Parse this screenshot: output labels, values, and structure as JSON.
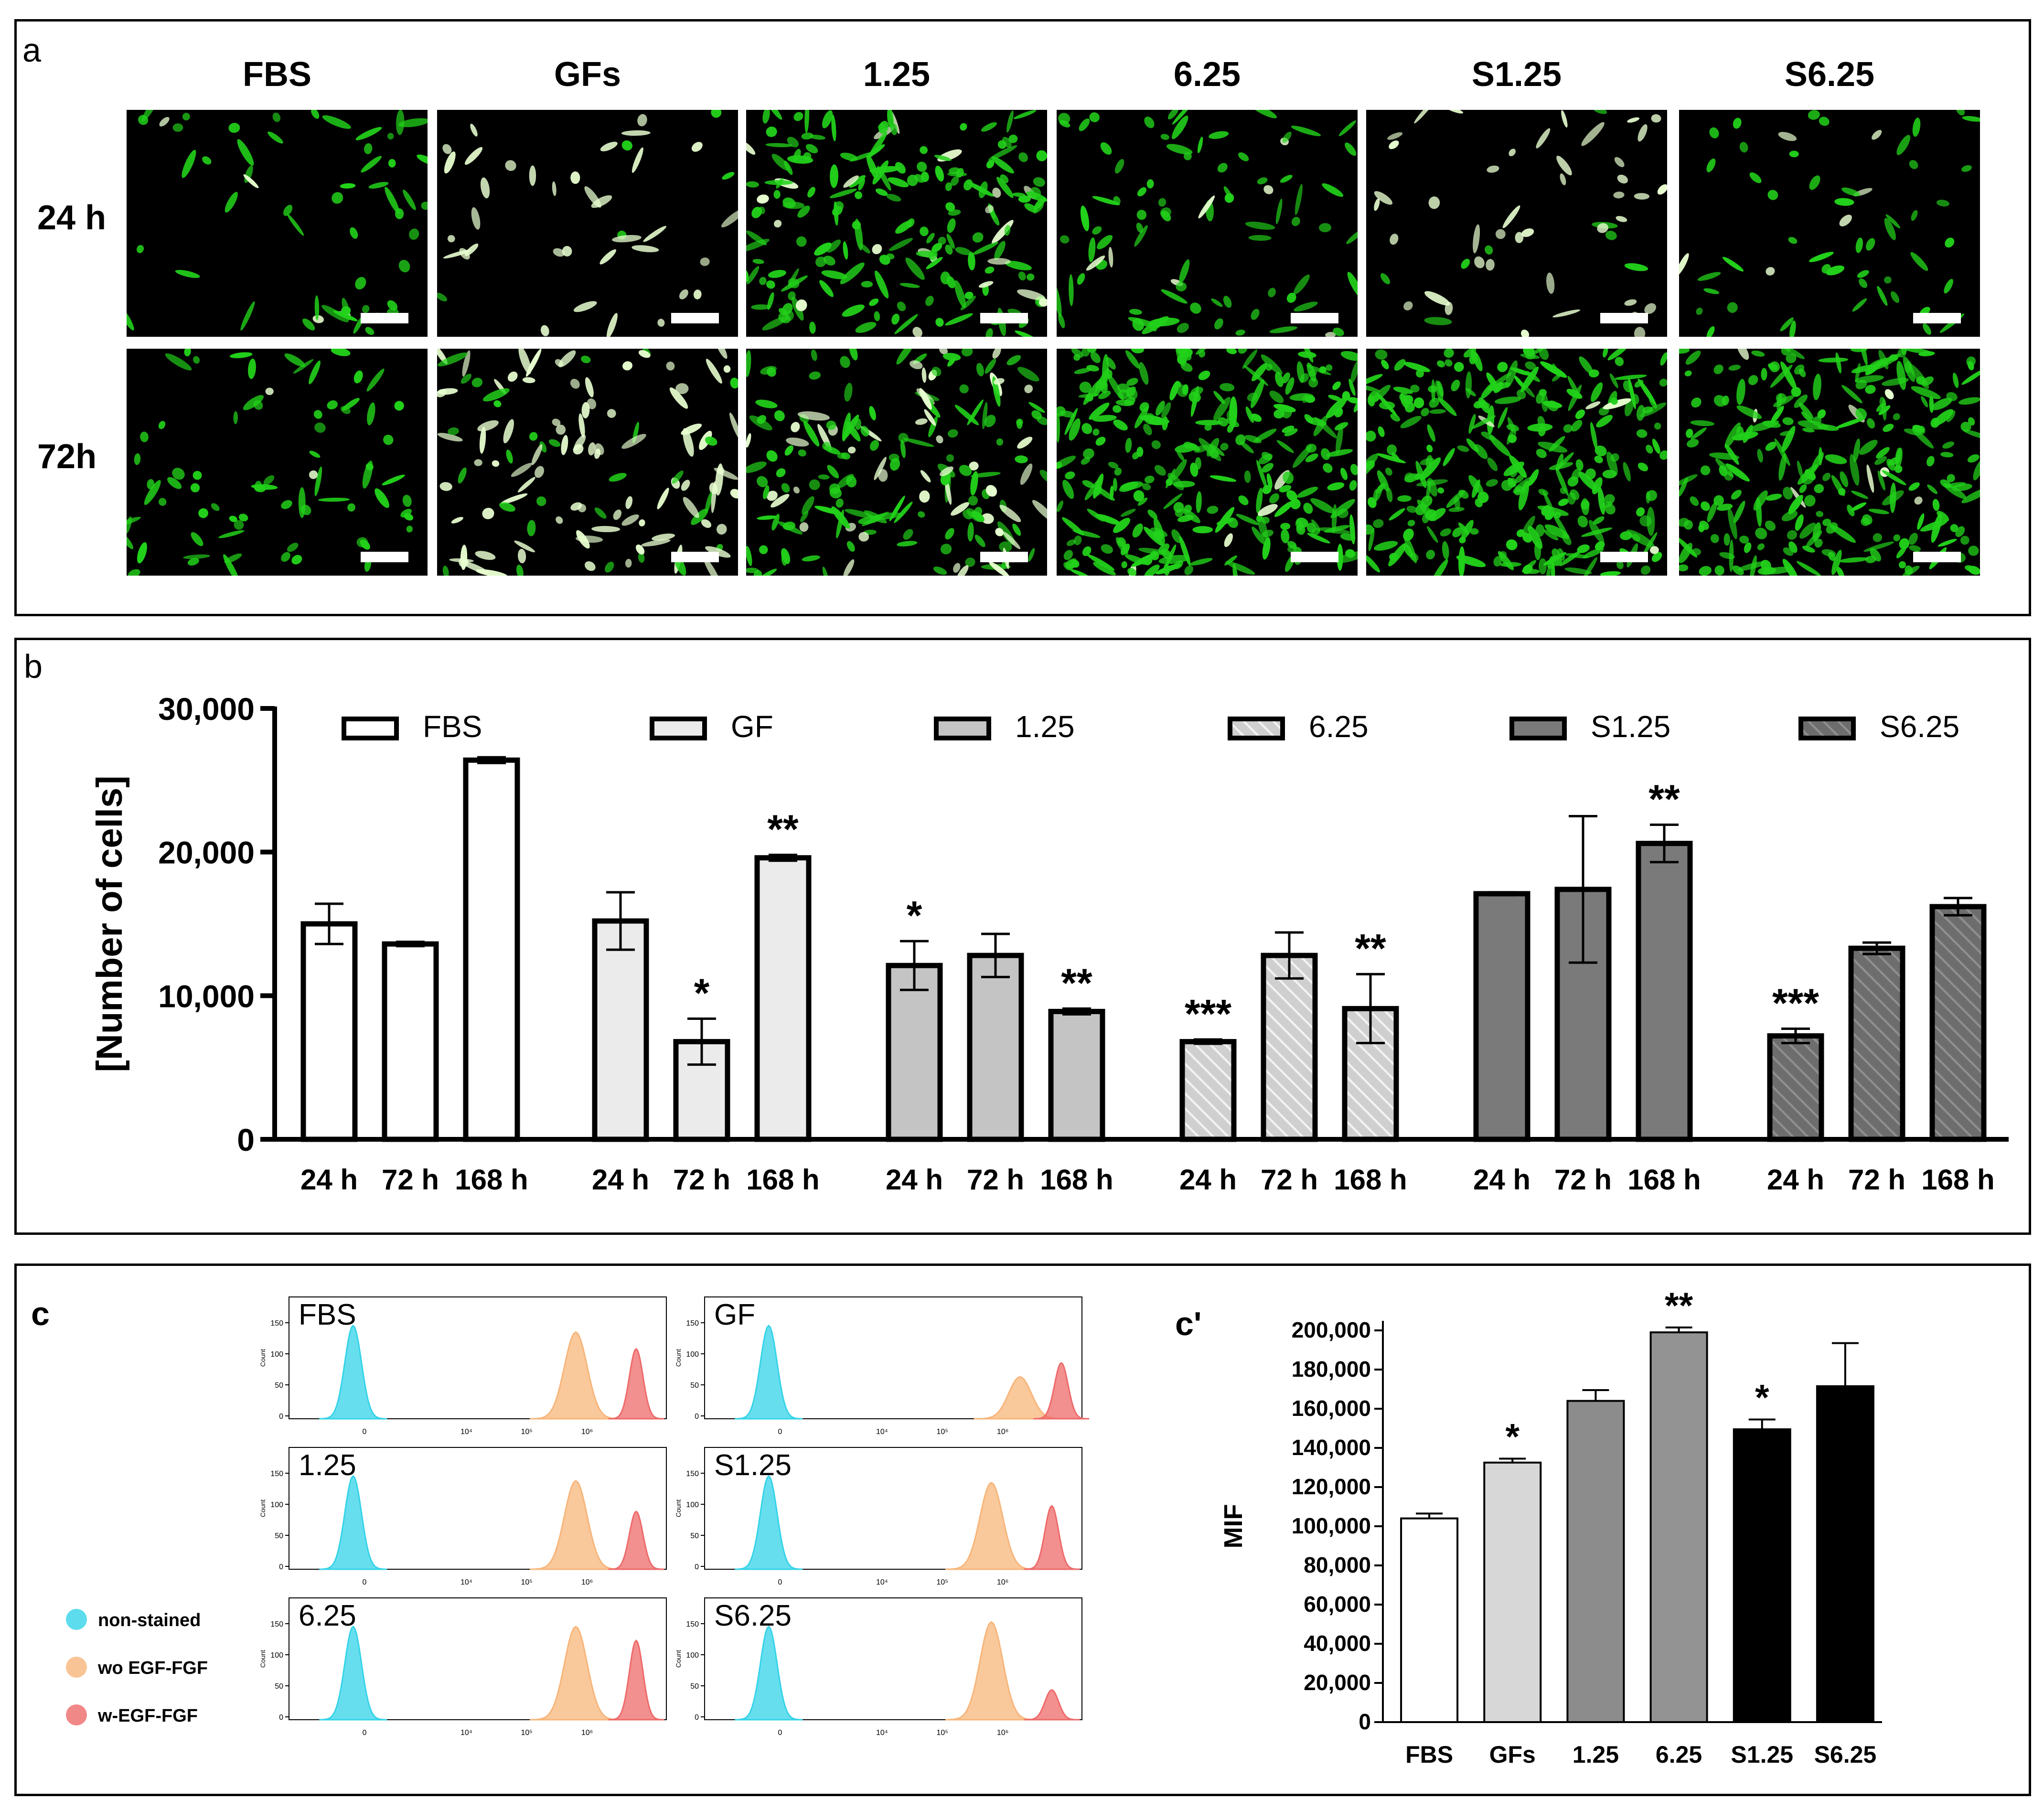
{
  "panel_a": {
    "label": "a",
    "columns": [
      "FBS",
      "GFs",
      "1.25",
      "6.25",
      "S1.25",
      "S6.25"
    ],
    "rows": [
      "24 h",
      "72h"
    ],
    "image_description": "green fluorescence microscopy of cells",
    "colors": {
      "cell": "#22d11a",
      "bright_cell": "#e8ffd0",
      "background": "#000000"
    }
  },
  "panel_b": {
    "label": "b",
    "chart_data": {
      "type": "bar",
      "ylabel": "[Number of cells]",
      "ylim": [
        0,
        30000
      ],
      "yticks": [
        "0",
        "10,000",
        "20,000",
        "30,000"
      ],
      "yticks_values": [
        0,
        10000,
        20000,
        30000
      ],
      "group_tick_labels": [
        "24 h",
        "72 h",
        "168 h"
      ],
      "legend_position": "top",
      "series": [
        {
          "name": "FBS",
          "fill": "#ffffff",
          "hatch": false,
          "values": [
            15000,
            13600,
            26400
          ],
          "errors": [
            1400,
            150,
            200
          ],
          "sig": [
            "",
            "",
            ""
          ]
        },
        {
          "name": "GF",
          "fill": "#ebebeb",
          "hatch": false,
          "values": [
            15200,
            6800,
            19600
          ],
          "errors": [
            2000,
            1600,
            200
          ],
          "sig": [
            "",
            "*",
            "**"
          ]
        },
        {
          "name": "1.25",
          "fill": "#c4c4c4",
          "hatch": false,
          "values": [
            12100,
            12800,
            8900
          ],
          "errors": [
            1700,
            1500,
            200
          ],
          "sig": [
            "*",
            "",
            "**"
          ]
        },
        {
          "name": "6.25",
          "fill": "#cfcfcf",
          "hatch": true,
          "values": [
            6800,
            12800,
            9100
          ],
          "errors": [
            150,
            1600,
            2400
          ],
          "sig": [
            "***",
            "",
            "**"
          ]
        },
        {
          "name": "S1.25",
          "fill": "#7a7a7a",
          "hatch": false,
          "values": [
            17100,
            17400,
            20600
          ],
          "errors": [
            100,
            5100,
            1300
          ],
          "sig": [
            "",
            "",
            "**"
          ]
        },
        {
          "name": "S6.25",
          "fill": "#6d6d6d",
          "hatch": true,
          "values": [
            7200,
            13300,
            16200
          ],
          "errors": [
            500,
            400,
            600
          ],
          "sig": [
            "***",
            "",
            ""
          ]
        }
      ]
    }
  },
  "panel_c": {
    "label": "c",
    "histograms": [
      {
        "name": "FBS",
        "peaks": [
          1.0,
          0.93,
          0.75
        ]
      },
      {
        "name": "GF",
        "peaks": [
          1.0,
          0.45,
          0.6
        ]
      },
      {
        "name": "1.25",
        "peaks": [
          1.0,
          0.95,
          0.62
        ]
      },
      {
        "name": "S1.25",
        "peaks": [
          1.0,
          0.93,
          0.68
        ]
      },
      {
        "name": "6.25",
        "peaks": [
          1.0,
          1.0,
          0.85
        ]
      },
      {
        "name": "S6.25",
        "peaks": [
          1.0,
          1.05,
          0.32
        ]
      }
    ],
    "y_axis_label": "Count",
    "y_ticks": [
      "0",
      "50",
      "100",
      "150"
    ],
    "x_ticks": [
      "0",
      "10⁴",
      "10⁵",
      "10⁶"
    ],
    "legend": [
      {
        "label": "non-stained",
        "color": "#34d3e8"
      },
      {
        "label": "wo EGF-FGF",
        "color": "#f7b57a"
      },
      {
        "label": "w-EGF-FGF",
        "color": "#ee6a6a"
      }
    ]
  },
  "panel_c_prime": {
    "label": "c'",
    "chart_data": {
      "type": "bar",
      "ylabel": "MIF",
      "ylim": [
        0,
        200000
      ],
      "yticks": [
        "0",
        "20,000",
        "40,000",
        "60,000",
        "80,000",
        "100,000",
        "120,000",
        "140,000",
        "160,000",
        "180,000",
        "200,000"
      ],
      "categories": [
        "FBS",
        "GFs",
        "1.25",
        "6.25",
        "S1.25",
        "S6.25"
      ],
      "values": [
        104000,
        132500,
        164000,
        199000,
        149500,
        171500
      ],
      "errors": [
        2500,
        2000,
        5500,
        2500,
        5000,
        22000
      ],
      "sig": [
        "",
        "*",
        "",
        "**",
        "*",
        ""
      ],
      "colors": [
        "#ffffff",
        "#d7d7d7",
        "#8c8c8c",
        "#939393",
        "#000000",
        "#000000"
      ]
    }
  }
}
